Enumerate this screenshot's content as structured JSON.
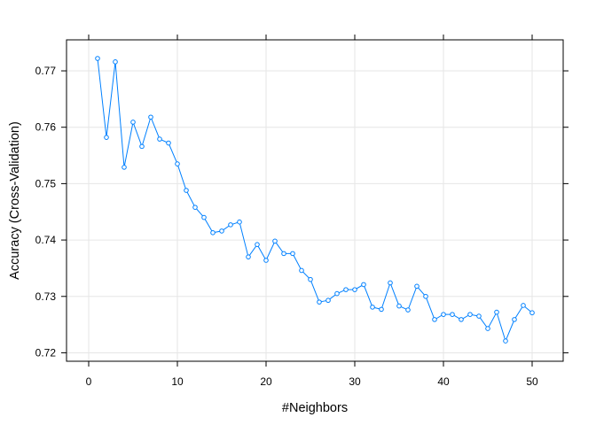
{
  "chart_data": {
    "type": "line",
    "xlabel": "#Neighbors",
    "ylabel": "Accuracy (Cross-Validation)",
    "xlim": [
      -2.5,
      53.5
    ],
    "ylim": [
      0.7185,
      0.7755
    ],
    "xticks": [
      0,
      10,
      20,
      30,
      40,
      50
    ],
    "yticks": [
      0.72,
      0.73,
      0.74,
      0.75,
      0.76,
      0.77
    ],
    "grid": true,
    "line_color": "#0080ff",
    "series": [
      {
        "x": [
          1,
          2,
          3,
          4,
          5,
          6,
          7,
          8,
          9,
          10,
          11,
          12,
          13,
          14,
          15,
          16,
          17,
          18,
          19,
          20,
          21,
          22,
          23,
          24,
          25,
          26,
          27,
          28,
          29,
          30,
          31,
          32,
          33,
          34,
          35,
          36,
          37,
          38,
          39,
          40,
          41,
          42,
          43,
          44,
          45,
          46,
          47,
          48,
          49,
          50
        ],
        "values": [
          0.7722,
          0.7582,
          0.7716,
          0.7529,
          0.7609,
          0.7566,
          0.7618,
          0.7579,
          0.7572,
          0.7535,
          0.7488,
          0.7458,
          0.744,
          0.7413,
          0.7416,
          0.7427,
          0.7432,
          0.737,
          0.7392,
          0.7364,
          0.7398,
          0.7376,
          0.7376,
          0.7346,
          0.733,
          0.729,
          0.7293,
          0.7305,
          0.7312,
          0.7312,
          0.7321,
          0.7281,
          0.7277,
          0.7324,
          0.7283,
          0.7276,
          0.7318,
          0.73,
          0.7259,
          0.7268,
          0.7268,
          0.7259,
          0.7268,
          0.7265,
          0.7243,
          0.7272,
          0.7221,
          0.7259,
          0.7284,
          0.7271
        ]
      }
    ]
  }
}
